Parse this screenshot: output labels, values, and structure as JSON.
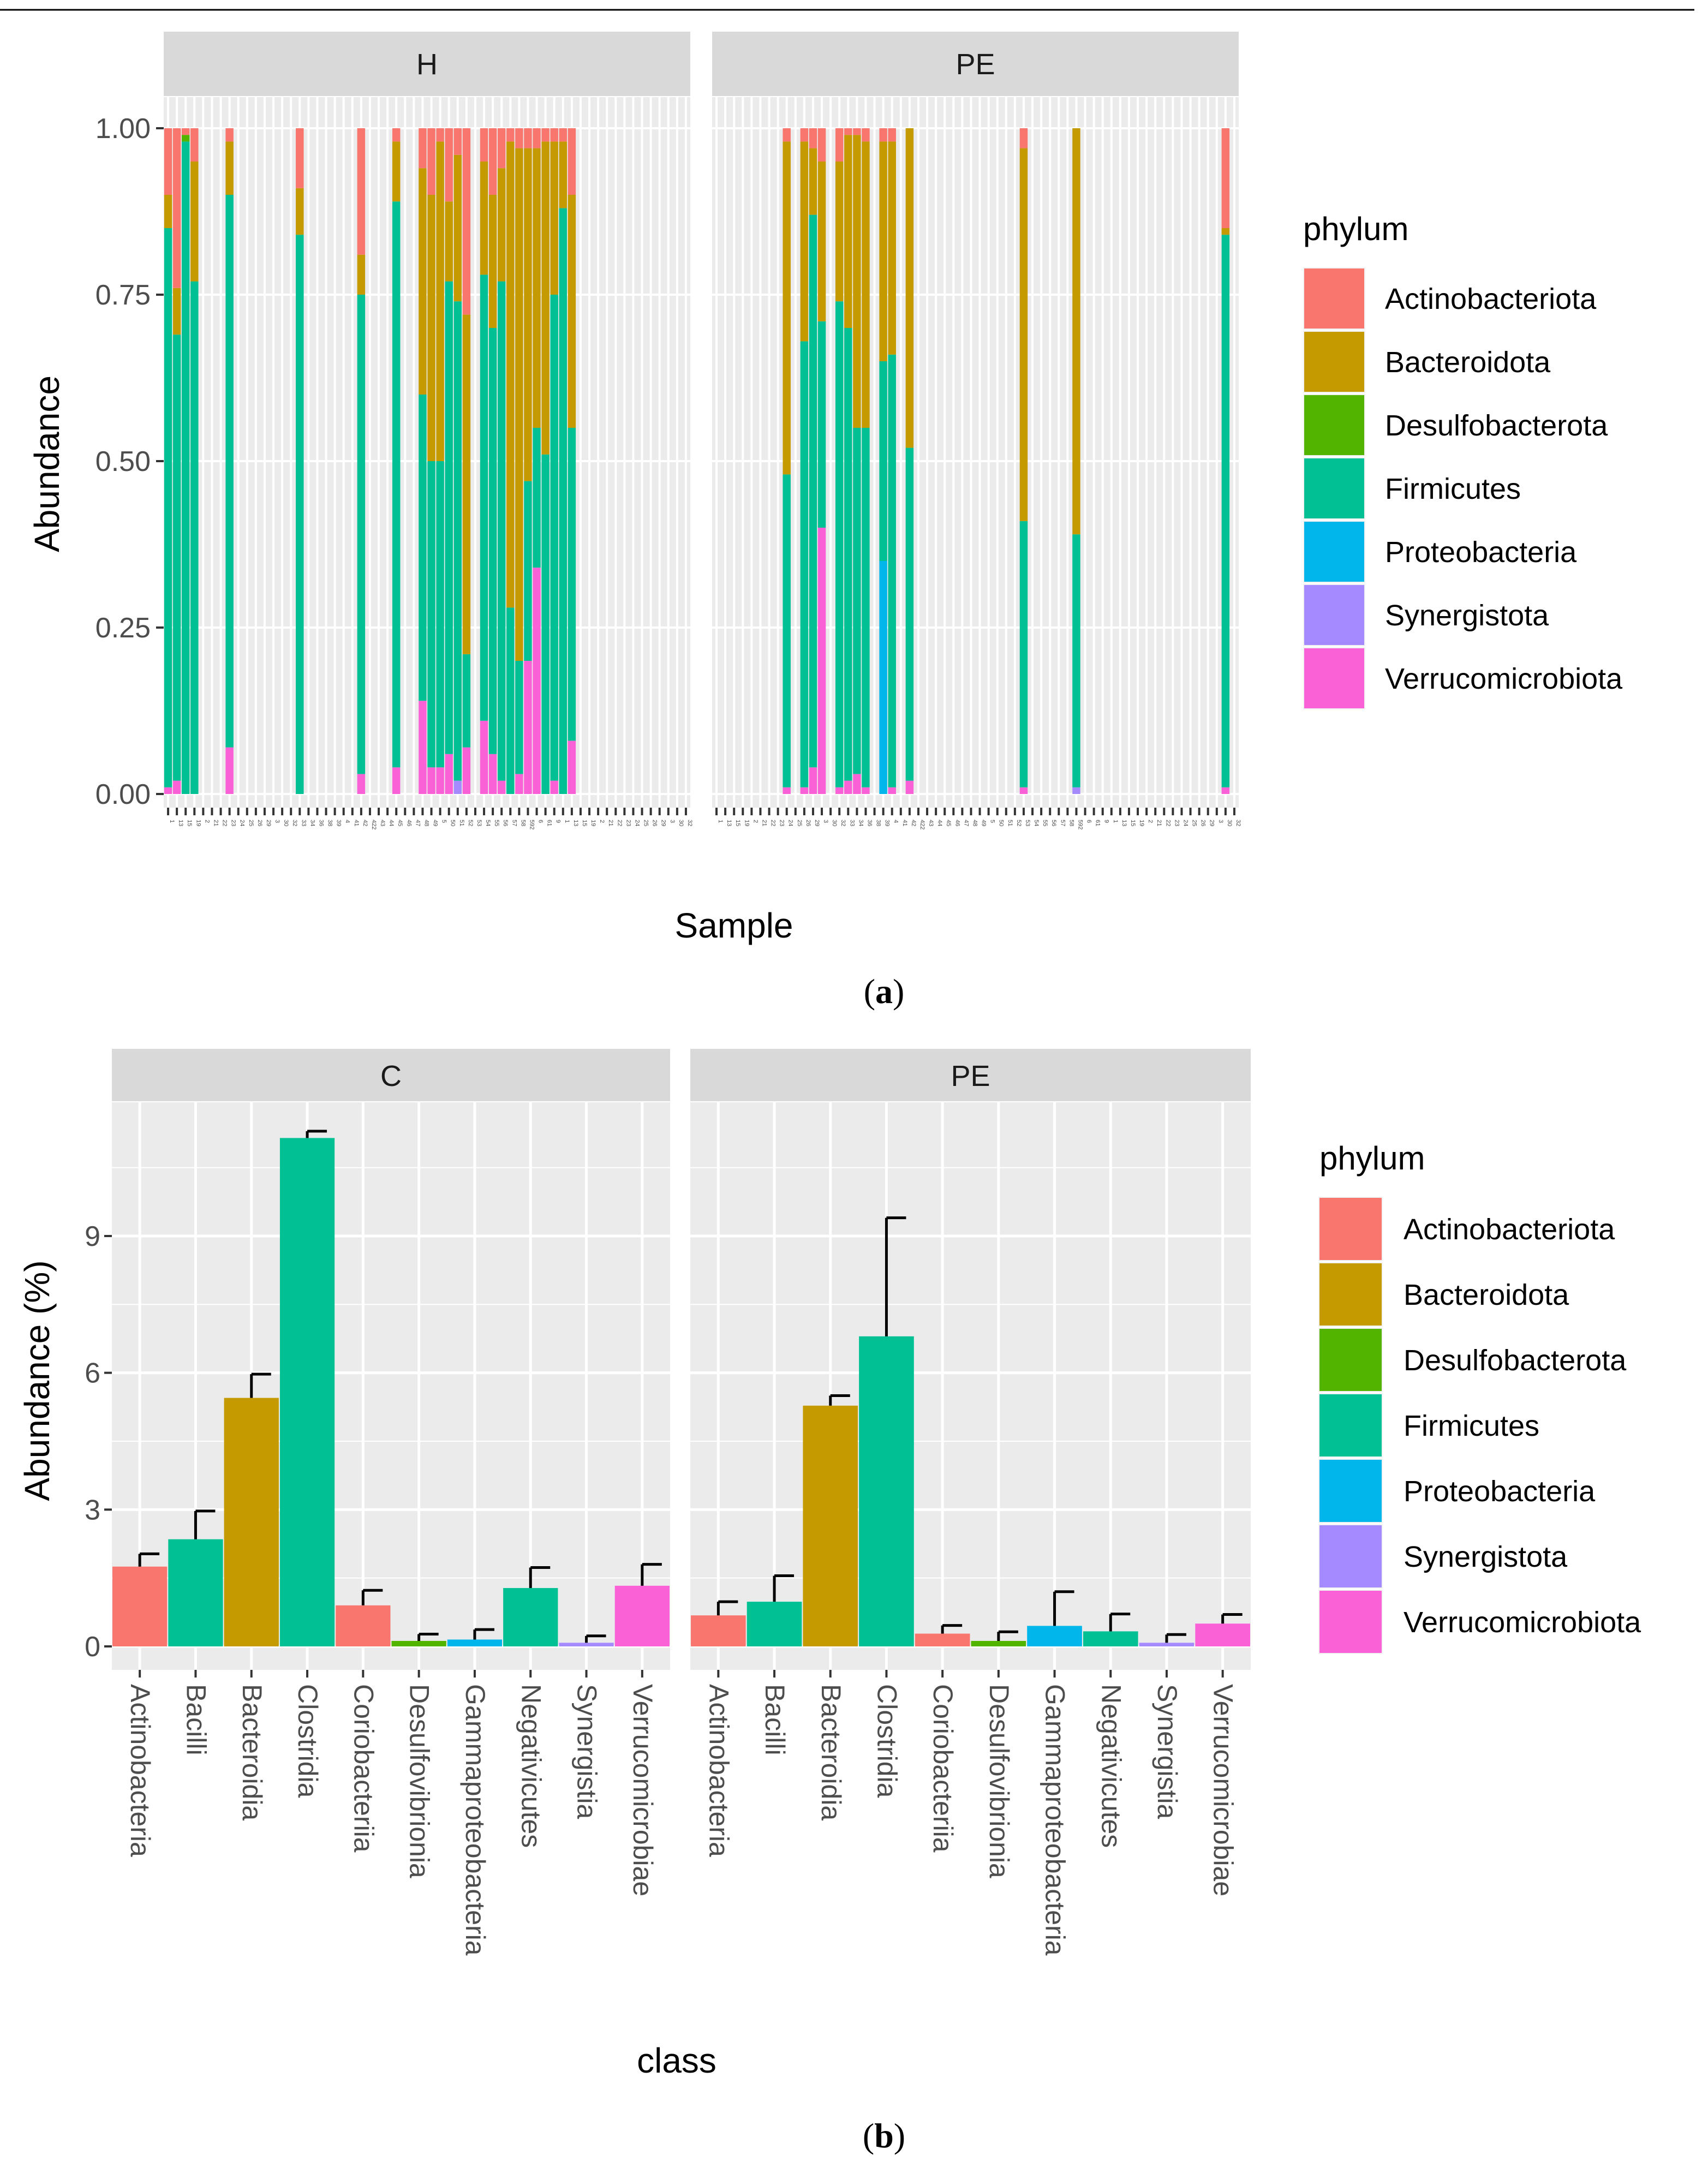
{
  "figure": {
    "panel_a_label": "a",
    "panel_b_label": "b"
  },
  "colors": {
    "panel_bg": "#ebebeb",
    "grid": "#ffffff",
    "strip_bg": "#d9d9d9",
    "axis_text": "#4d4d4d",
    "title_text": "#000000",
    "Actinobacteriota": "#f8766d",
    "Bacteroidota": "#c49a00",
    "Desulfobacterota": "#53b400",
    "Firmicutes": "#00c094",
    "Proteobacteria": "#00b6eb",
    "Synergistota": "#a58aff",
    "Verrucomicrobiota": "#fb61d7"
  },
  "chart_data": [
    {
      "id": "a",
      "type": "bar",
      "stacked": true,
      "xlabel": "Sample",
      "ylabel": "Abundance",
      "ylim": [
        0,
        1
      ],
      "yticks": [
        "0.00",
        "0.25",
        "0.50",
        "0.75",
        "1.00"
      ],
      "ytick_values": [
        0,
        0.25,
        0.5,
        0.75,
        1.0
      ],
      "legend_title": "phylum",
      "legend_position": "right",
      "phyla": [
        "Actinobacteriota",
        "Bacteroidota",
        "Desulfobacterota",
        "Firmicutes",
        "Proteobacteria",
        "Synergistota",
        "Verrucomicrobiota"
      ],
      "sample_slots": 60,
      "facets": [
        {
          "label": "H",
          "samples": [
            {
              "slot": 0,
              "values": [
                0.1,
                0.05,
                0.0,
                0.84,
                0.0,
                0.0,
                0.01
              ]
            },
            {
              "slot": 1,
              "values": [
                0.24,
                0.07,
                0.0,
                0.67,
                0.0,
                0.0,
                0.02
              ]
            },
            {
              "slot": 2,
              "values": [
                0.01,
                0.0,
                0.01,
                0.98,
                0.0,
                0.0,
                0.0
              ]
            },
            {
              "slot": 3,
              "values": [
                0.05,
                0.18,
                0.0,
                0.77,
                0.0,
                0.0,
                0.0
              ]
            },
            {
              "slot": 7,
              "values": [
                0.02,
                0.08,
                0.0,
                0.83,
                0.0,
                0.0,
                0.07
              ]
            },
            {
              "slot": 15,
              "values": [
                0.09,
                0.07,
                0.0,
                0.84,
                0.0,
                0.0,
                0.0
              ]
            },
            {
              "slot": 22,
              "values": [
                0.19,
                0.06,
                0.0,
                0.72,
                0.0,
                0.0,
                0.03
              ]
            },
            {
              "slot": 26,
              "values": [
                0.02,
                0.09,
                0.0,
                0.85,
                0.0,
                0.0,
                0.04
              ]
            },
            {
              "slot": 29,
              "values": [
                0.06,
                0.34,
                0.0,
                0.46,
                0.0,
                0.0,
                0.14
              ]
            },
            {
              "slot": 30,
              "values": [
                0.1,
                0.4,
                0.0,
                0.46,
                0.0,
                0.0,
                0.04
              ]
            },
            {
              "slot": 31,
              "values": [
                0.02,
                0.48,
                0.0,
                0.46,
                0.0,
                0.0,
                0.04
              ]
            },
            {
              "slot": 32,
              "values": [
                0.11,
                0.12,
                0.0,
                0.71,
                0.0,
                0.0,
                0.06
              ]
            },
            {
              "slot": 33,
              "values": [
                0.04,
                0.22,
                0.0,
                0.72,
                0.0,
                0.02,
                0.0
              ]
            },
            {
              "slot": 34,
              "values": [
                0.28,
                0.51,
                0.0,
                0.14,
                0.0,
                0.0,
                0.07
              ]
            },
            {
              "slot": 36,
              "values": [
                0.05,
                0.17,
                0.0,
                0.67,
                0.0,
                0.0,
                0.11
              ]
            },
            {
              "slot": 37,
              "values": [
                0.1,
                0.2,
                0.0,
                0.64,
                0.0,
                0.0,
                0.06
              ]
            },
            {
              "slot": 38,
              "values": [
                0.06,
                0.17,
                0.0,
                0.75,
                0.0,
                0.0,
                0.02
              ]
            },
            {
              "slot": 39,
              "values": [
                0.02,
                0.7,
                0.0,
                0.28,
                0.0,
                0.0,
                0.0
              ]
            },
            {
              "slot": 40,
              "values": [
                0.03,
                0.77,
                0.0,
                0.17,
                0.0,
                0.0,
                0.03
              ]
            },
            {
              "slot": 41,
              "values": [
                0.03,
                0.5,
                0.0,
                0.27,
                0.0,
                0.0,
                0.2
              ]
            },
            {
              "slot": 42,
              "values": [
                0.03,
                0.42,
                0.0,
                0.21,
                0.0,
                0.0,
                0.34
              ]
            },
            {
              "slot": 43,
              "values": [
                0.02,
                0.47,
                0.0,
                0.51,
                0.0,
                0.0,
                0.0
              ]
            },
            {
              "slot": 44,
              "values": [
                0.02,
                0.23,
                0.0,
                0.73,
                0.0,
                0.0,
                0.02
              ]
            },
            {
              "slot": 45,
              "values": [
                0.02,
                0.1,
                0.0,
                0.88,
                0.0,
                0.0,
                0.0
              ]
            },
            {
              "slot": 46,
              "values": [
                0.1,
                0.35,
                0.0,
                0.47,
                0.0,
                0.0,
                0.08
              ]
            }
          ]
        },
        {
          "label": "PE",
          "samples": [
            {
              "slot": 8,
              "values": [
                0.02,
                0.5,
                0.0,
                0.47,
                0.0,
                0.0,
                0.01
              ]
            },
            {
              "slot": 10,
              "values": [
                0.02,
                0.3,
                0.0,
                0.67,
                0.0,
                0.0,
                0.01
              ]
            },
            {
              "slot": 11,
              "values": [
                0.03,
                0.1,
                0.0,
                0.83,
                0.0,
                0.0,
                0.04
              ]
            },
            {
              "slot": 12,
              "values": [
                0.05,
                0.24,
                0.0,
                0.31,
                0.0,
                0.0,
                0.4
              ]
            },
            {
              "slot": 14,
              "values": [
                0.05,
                0.21,
                0.0,
                0.73,
                0.0,
                0.0,
                0.01
              ]
            },
            {
              "slot": 15,
              "values": [
                0.01,
                0.29,
                0.0,
                0.68,
                0.0,
                0.0,
                0.02
              ]
            },
            {
              "slot": 16,
              "values": [
                0.01,
                0.44,
                0.0,
                0.52,
                0.0,
                0.0,
                0.03
              ]
            },
            {
              "slot": 17,
              "values": [
                0.02,
                0.43,
                0.0,
                0.54,
                0.0,
                0.0,
                0.01
              ]
            },
            {
              "slot": 19,
              "values": [
                0.02,
                0.33,
                0.0,
                0.3,
                0.35,
                0.0,
                0.0
              ]
            },
            {
              "slot": 20,
              "values": [
                0.02,
                0.32,
                0.0,
                0.65,
                0.0,
                0.0,
                0.01
              ]
            },
            {
              "slot": 22,
              "values": [
                0.0,
                0.48,
                0.0,
                0.5,
                0.0,
                0.0,
                0.02
              ]
            },
            {
              "slot": 35,
              "values": [
                0.03,
                0.56,
                0.0,
                0.4,
                0.0,
                0.0,
                0.01
              ]
            },
            {
              "slot": 41,
              "values": [
                0.0,
                0.61,
                0.0,
                0.38,
                0.0,
                0.01,
                0.0
              ]
            },
            {
              "slot": 58,
              "values": [
                0.15,
                0.01,
                0.0,
                0.83,
                0.0,
                0.0,
                0.01
              ]
            }
          ]
        }
      ],
      "x_tick_labels": [
        "1",
        "13",
        "15",
        "19",
        "2",
        "21",
        "22",
        "23",
        "24",
        "25",
        "26",
        "29",
        "3",
        "30",
        "32",
        "33",
        "34",
        "36",
        "38",
        "39",
        "4",
        "41",
        "42",
        "422",
        "43",
        "44",
        "45",
        "46",
        "47",
        "48",
        "49",
        "5",
        "50",
        "51",
        "52",
        "53",
        "54",
        "55",
        "56",
        "57",
        "58",
        "592",
        "6",
        "61",
        "9"
      ]
    },
    {
      "id": "b",
      "type": "bar",
      "stacked": false,
      "xlabel": "class",
      "ylabel": "Abundance (%)",
      "ylim": [
        0,
        11.5
      ],
      "yticks": [
        "0",
        "3",
        "6",
        "9"
      ],
      "ytick_values": [
        0,
        3,
        6,
        9
      ],
      "legend_title": "phylum",
      "legend_position": "right",
      "categories": [
        "Actinobacteria",
        "Bacilli",
        "Bacteroidia",
        "Clostridia",
        "Coriobacteriia",
        "Desulfovibrionia",
        "Gammaproteobacteria",
        "Negativicutes",
        "Synergistia",
        "Verrucomicrobiae"
      ],
      "category_phylum": [
        "Actinobacteriota",
        "Firmicutes",
        "Bacteroidota",
        "Firmicutes",
        "Actinobacteriota",
        "Desulfobacterota",
        "Proteobacteria",
        "Firmicutes",
        "Synergistota",
        "Verrucomicrobiota"
      ],
      "facets": [
        {
          "label": "C",
          "values": [
            1.75,
            2.35,
            5.45,
            11.15,
            0.9,
            0.12,
            0.15,
            1.28,
            0.08,
            1.33
          ],
          "errors": [
            0.28,
            0.62,
            0.52,
            0.15,
            0.33,
            0.15,
            0.22,
            0.45,
            0.15,
            0.47
          ]
        },
        {
          "label": "PE",
          "values": [
            0.68,
            0.98,
            5.28,
            6.8,
            0.28,
            0.12,
            0.45,
            0.33,
            0.08,
            0.5
          ],
          "errors": [
            0.3,
            0.57,
            0.22,
            2.6,
            0.18,
            0.2,
            0.75,
            0.38,
            0.18,
            0.2
          ]
        }
      ]
    }
  ]
}
